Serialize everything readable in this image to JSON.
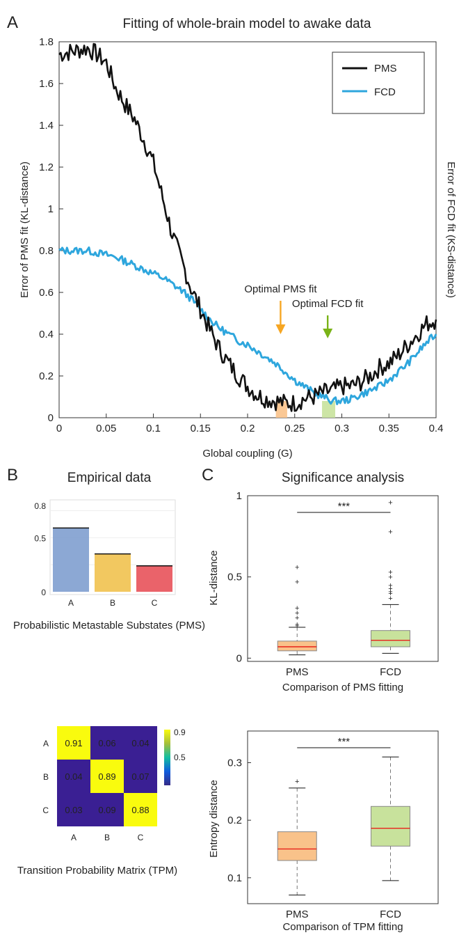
{
  "panel_letters": {
    "a": "A",
    "b": "B",
    "c": "C"
  },
  "colors": {
    "pms": "#111111",
    "fcd": "#2ea6dd",
    "orange": "#f6a623",
    "orange_fill": "#f9c28a",
    "green": "#7ab317",
    "green_fill": "#c8e29c",
    "median": "#e8221b",
    "outlier": "#e8221b",
    "bar_a": "#7f9fcf",
    "bar_b": "#f1c24f",
    "bar_c": "#e8525a"
  },
  "chart_data": [
    {
      "id": "A",
      "type": "line",
      "title": "Fitting of whole-brain model to awake data",
      "xlabel": "Global coupling (G)",
      "ylabel": "Error of PMS fit (KL-distance)",
      "ylabel_right": "Error of FCD fit (KS-distance)",
      "xlim": [
        0,
        0.4
      ],
      "ylim": [
        0,
        1.8
      ],
      "xticks": [
        "0",
        "0.05",
        "0.1",
        "0.15",
        "0.2",
        "0.25",
        "0.3",
        "0.35",
        "0.4"
      ],
      "yticks": [
        "0",
        "0.2",
        "0.4",
        "0.6",
        "0.8",
        "1",
        "1.2",
        "1.4",
        "1.6",
        "1.8"
      ],
      "legend": {
        "placement": "top-right",
        "entries": [
          "PMS",
          "FCD"
        ]
      },
      "series": [
        {
          "name": "PMS",
          "x": [
            0,
            0.01,
            0.02,
            0.03,
            0.04,
            0.05,
            0.06,
            0.07,
            0.08,
            0.09,
            0.1,
            0.11,
            0.12,
            0.13,
            0.14,
            0.15,
            0.16,
            0.17,
            0.18,
            0.19,
            0.2,
            0.21,
            0.22,
            0.23,
            0.24,
            0.25,
            0.26,
            0.27,
            0.28,
            0.29,
            0.3,
            0.31,
            0.32,
            0.33,
            0.34,
            0.35,
            0.36,
            0.37,
            0.38,
            0.39,
            0.4
          ],
          "values": [
            1.74,
            1.75,
            1.76,
            1.77,
            1.74,
            1.7,
            1.58,
            1.5,
            1.43,
            1.33,
            1.22,
            1.05,
            0.88,
            0.75,
            0.62,
            0.52,
            0.42,
            0.33,
            0.26,
            0.2,
            0.15,
            0.11,
            0.09,
            0.08,
            0.07,
            0.07,
            0.09,
            0.1,
            0.12,
            0.13,
            0.15,
            0.15,
            0.17,
            0.2,
            0.24,
            0.26,
            0.3,
            0.35,
            0.4,
            0.45,
            0.47
          ]
        },
        {
          "name": "FCD",
          "x": [
            0,
            0.01,
            0.02,
            0.03,
            0.04,
            0.05,
            0.06,
            0.07,
            0.08,
            0.09,
            0.1,
            0.11,
            0.12,
            0.13,
            0.14,
            0.15,
            0.16,
            0.17,
            0.18,
            0.19,
            0.2,
            0.21,
            0.22,
            0.23,
            0.24,
            0.25,
            0.26,
            0.27,
            0.28,
            0.29,
            0.3,
            0.31,
            0.32,
            0.33,
            0.34,
            0.35,
            0.36,
            0.37,
            0.38,
            0.39,
            0.4
          ],
          "values": [
            0.8,
            0.8,
            0.8,
            0.8,
            0.79,
            0.78,
            0.77,
            0.75,
            0.73,
            0.71,
            0.69,
            0.67,
            0.64,
            0.61,
            0.57,
            0.52,
            0.47,
            0.43,
            0.4,
            0.37,
            0.35,
            0.32,
            0.29,
            0.26,
            0.22,
            0.18,
            0.15,
            0.12,
            0.1,
            0.08,
            0.08,
            0.09,
            0.11,
            0.13,
            0.15,
            0.18,
            0.22,
            0.26,
            0.31,
            0.36,
            0.4
          ]
        }
      ],
      "annotations": [
        {
          "text": "Optimal PMS fit",
          "x": 0.235,
          "arrow_from": 0.56,
          "arrow_to": 0.4
        },
        {
          "text": "Optimal FCD fit",
          "x": 0.285,
          "arrow_from": 0.49,
          "arrow_to": 0.38
        }
      ],
      "highlight_bars": [
        {
          "x0": 0.23,
          "x1": 0.242,
          "y": 0.08
        },
        {
          "x0": 0.279,
          "x1": 0.293,
          "y": 0.08
        }
      ]
    },
    {
      "id": "B-bar",
      "type": "bar",
      "title": "Empirical data",
      "xlabel": "Probabilistic Metastable Substates (PMS)",
      "categories": [
        "A",
        "B",
        "C"
      ],
      "values": [
        0.59,
        0.35,
        0.24
      ],
      "ylim": [
        0,
        0.85
      ],
      "yticks": [
        "0",
        "0.5",
        "0.8"
      ]
    },
    {
      "id": "B-tpm",
      "type": "heatmap",
      "xlabel": "Transition Probability Matrix (TPM)",
      "rows": [
        "A",
        "B",
        "C"
      ],
      "cols": [
        "A",
        "B",
        "C"
      ],
      "values": [
        [
          "0.91",
          "0.06",
          "0.04"
        ],
        [
          "0.04",
          "0.89",
          "0.07"
        ],
        [
          "0.03",
          "0.09",
          "0.88"
        ]
      ],
      "colorbar_ticks": [
        "0.9",
        "0.5"
      ]
    },
    {
      "id": "C-top",
      "type": "box",
      "title": "Significance analysis",
      "xlabel": "Comparison of PMS fitting",
      "ylabel": "KL-distance",
      "categories": [
        "PMS",
        "FCD"
      ],
      "ylim": [
        -0.02,
        1.0
      ],
      "yticks": [
        "0",
        "0.5",
        "1"
      ],
      "significance": "***",
      "boxes": [
        {
          "whisker_low": 0.02,
          "q1": 0.045,
          "median": 0.07,
          "q3": 0.105,
          "whisker_high": 0.19,
          "outliers": [
            0.2,
            0.21,
            0.25,
            0.28,
            0.31,
            0.47,
            0.56
          ]
        },
        {
          "whisker_low": 0.03,
          "q1": 0.07,
          "median": 0.11,
          "q3": 0.17,
          "whisker_high": 0.33,
          "outliers": [
            0.37,
            0.4,
            0.41,
            0.43,
            0.45,
            0.5,
            0.53,
            0.78,
            0.96
          ]
        }
      ]
    },
    {
      "id": "C-bottom",
      "type": "box",
      "xlabel": "Comparison of TPM fitting",
      "ylabel": "Entropy distance",
      "categories": [
        "PMS",
        "FCD"
      ],
      "ylim": [
        0.055,
        0.355
      ],
      "yticks": [
        "0.1",
        "0.2",
        "0.3"
      ],
      "significance": "***",
      "boxes": [
        {
          "whisker_low": 0.07,
          "q1": 0.13,
          "median": 0.15,
          "q3": 0.18,
          "whisker_high": 0.256,
          "outliers": [
            0.268
          ]
        },
        {
          "whisker_low": 0.095,
          "q1": 0.155,
          "median": 0.186,
          "q3": 0.224,
          "whisker_high": 0.31,
          "outliers": []
        }
      ]
    }
  ]
}
